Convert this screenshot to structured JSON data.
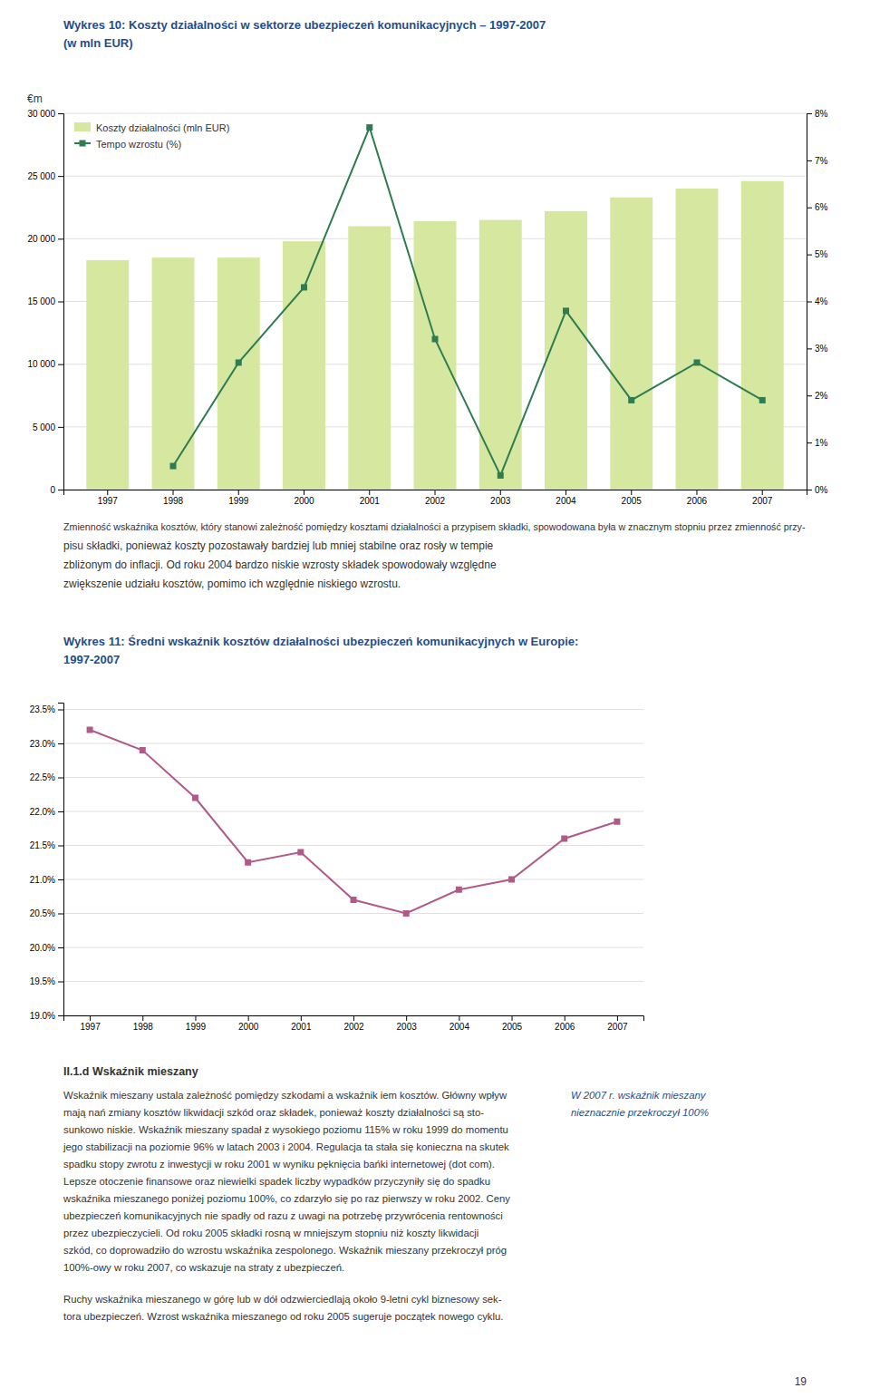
{
  "chart_data": [
    {
      "type": "bar",
      "title": "Wykres 10: Koszty działalności w sektorze ubezpieczeń komunikacyjnych – 1997-2007",
      "subtitle": "(w mln EUR)",
      "ylabel": "€m",
      "categories": [
        "1997",
        "1998",
        "1999",
        "2000",
        "2001",
        "2002",
        "2003",
        "2004",
        "2005",
        "2006",
        "2007"
      ],
      "series": [
        {
          "name": "Koszty działalności (mln EUR)",
          "type": "bar",
          "color": "#d6e8a0",
          "values": [
            18300,
            18500,
            18500,
            19800,
            21000,
            21400,
            21500,
            22200,
            23300,
            24000,
            24600
          ]
        },
        {
          "name": "Tempo wzrostu (%)",
          "type": "line",
          "axis": "y2",
          "color": "#2e7d52",
          "marker": "square",
          "values": [
            null,
            0.005,
            0.027,
            0.043,
            0.077,
            0.032,
            0.003,
            0.038,
            0.019,
            0.027,
            0.019
          ]
        }
      ],
      "ylim": [
        0,
        30000
      ],
      "yticks": [
        0,
        {
          "value": 5000,
          "label": "5 000"
        },
        {
          "value": 10000,
          "label": "10 000"
        },
        {
          "value": 15000,
          "label": "15 000"
        },
        {
          "value": 20000,
          "label": "20 000"
        },
        {
          "value": 25000,
          "label": "25 000"
        },
        {
          "value": 30000,
          "label": "30 000"
        }
      ],
      "y2lim": [
        0,
        0.08
      ],
      "y2ticks": [
        {
          "value": 0.0,
          "label": "0%"
        },
        {
          "value": 0.01,
          "label": "1%"
        },
        {
          "value": 0.02,
          "label": "2%"
        },
        {
          "value": 0.03,
          "label": "3%"
        },
        {
          "value": 0.04,
          "label": "4%"
        },
        {
          "value": 0.05,
          "label": "5%"
        },
        {
          "value": 0.06,
          "label": "6%"
        },
        {
          "value": 0.07,
          "label": "7%"
        },
        {
          "value": 0.08,
          "label": "8%"
        }
      ],
      "grid": true,
      "legend": "upper left"
    },
    {
      "type": "line",
      "title": "Wykres 11: Średni wskaźnik kosztów działalności ubezpieczeń komunikacyjnych w Europie:",
      "subtitle": "1997-2007",
      "categories": [
        "1997",
        "1998",
        "1999",
        "2000",
        "2001",
        "2002",
        "2003",
        "2004",
        "2005",
        "2006",
        "2007"
      ],
      "values": [
        0.232,
        0.229,
        0.222,
        0.2125,
        0.214,
        0.207,
        0.205,
        0.2085,
        0.21,
        0.216,
        0.2185
      ],
      "color": "#b05a8a",
      "marker": "square",
      "ylim": [
        0.19,
        0.236
      ],
      "yticks": [
        {
          "value": 0.19,
          "label": "19.0%"
        },
        {
          "value": 0.195,
          "label": "19.5%"
        },
        {
          "value": 0.2,
          "label": "20.0%"
        },
        {
          "value": 0.205,
          "label": "20.5%"
        },
        {
          "value": 0.21,
          "label": "21.0%"
        },
        {
          "value": 0.215,
          "label": "21.5%"
        },
        {
          "value": 0.22,
          "label": "22.0%"
        },
        {
          "value": 0.225,
          "label": "22.5%"
        },
        {
          "value": 0.23,
          "label": "23.0%"
        },
        {
          "value": 0.235,
          "label": "23.5%"
        }
      ],
      "grid": true
    }
  ],
  "page_text": {
    "paragraph_lines": [
      "Zmienność wskaźnika kosztów, który stanowi zależność pomiędzy kosztami działalności a przypisem składki, spowodowana była w znacznym stopniu przez zmienność przy-",
      "pisu składki, ponieważ koszty pozostawały bardziej lub mniej stabilne oraz rosły w tempie",
      "zbliżonym do inflacji. Od roku 2004 bardzo niskie wzrosty składek spowodowały względne",
      "zwiększenie udziału kosztów, pomimo ich względnie niskiego wzrostu."
    ],
    "heading": "II.1.d Wskaźnik mieszany",
    "paragraph1_lines": [
      "Wskaźnik mieszany ustala zależność pomiędzy szkodami a wskaźnik iem kosztów. Główny wpływ",
      "mają nań zmiany kosztów likwidacji szkód oraz składek, ponieważ koszty działalności są sto-",
      "sunkowo niskie. Wskaźnik mieszany spadał z wysokiego poziomu 115% w roku 1999 do momentu",
      "jego stabilizacji na poziomie 96% w latach 2003 i 2004. Regulacja ta stała się konieczna na skutek",
      "spadku stopy zwrotu z inwestycji w roku 2001 w wyniku pęknięcia bańki internetowej (dot com).",
      "Lepsze otoczenie finansowe oraz niewielki spadek liczby wypadków przyczyniły się do spadku",
      "wskaźnika mieszanego poniżej poziomu 100%, co zdarzyło się po raz pierwszy w roku 2002. Ceny",
      "ubezpieczeń komunikacyjnych nie spadły od razu z uwagi na potrzebę przywrócenia rentowności",
      "przez ubezpieczycieli. Od roku 2005 składki rosną w mniejszym stopniu niż koszty likwidacji",
      "szkód, co doprowadziło do wzrostu wskaźnika zespolonego. Wskaźnik mieszany przekroczył próg",
      "100%-owy w roku 2007, co wskazuje na straty z ubezpieczeń."
    ],
    "sidebar_lines": [
      "W 2007 r. wskaźnik mieszany",
      "nieznacznie przekroczył 100%"
    ],
    "paragraph2_lines": [
      "Ruchy wskaźnika mieszanego w górę lub w dół odzwierciedlają około 9-letni cykl biznesowy sek-",
      "tora ubezpieczeń. Wzrost wskaźnika mieszanego od roku 2005 sugeruje początek nowego cyklu."
    ],
    "page_number": "19"
  }
}
